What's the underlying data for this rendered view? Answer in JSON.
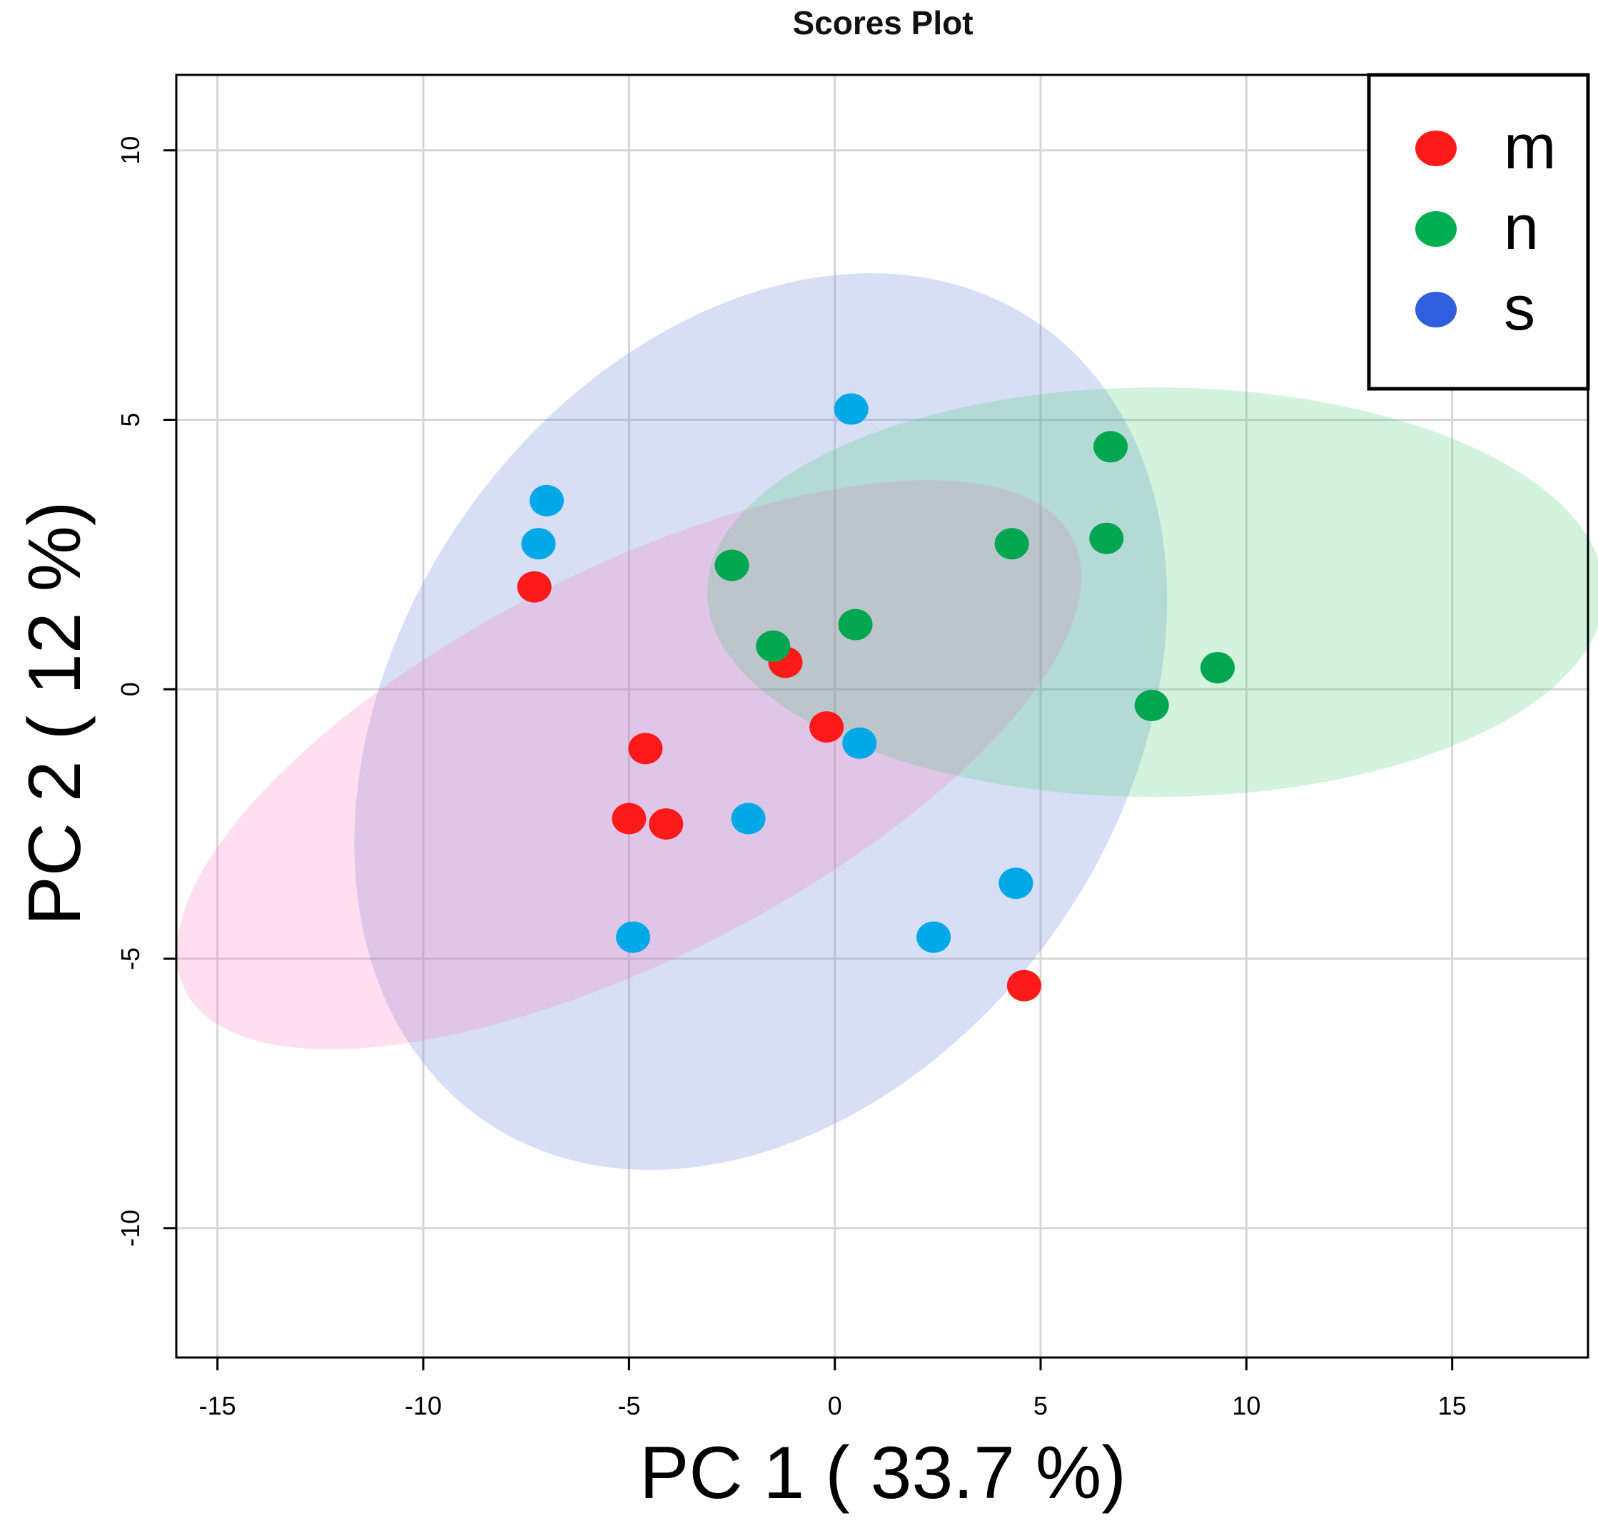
{
  "chart_data": {
    "type": "scatter",
    "title": "Scores Plot",
    "xlabel": "PC 1 ( 33.7 %)",
    "ylabel": "PC 2 ( 12 %)",
    "xlim": [
      -16,
      18.3
    ],
    "ylim": [
      -12.4,
      11.4
    ],
    "xticks": [
      -15,
      -10,
      -5,
      0,
      5,
      10,
      15
    ],
    "yticks": [
      -10,
      -5,
      0,
      5,
      10
    ],
    "grid": true,
    "legend": "top-right",
    "series": [
      {
        "name": "m",
        "color": "#ff1a1a",
        "legend_color": "#ff1a1a",
        "points": [
          {
            "x": -7.3,
            "y": 1.9
          },
          {
            "x": -1.2,
            "y": 0.5
          },
          {
            "x": -0.2,
            "y": -0.7
          },
          {
            "x": -4.6,
            "y": -1.1
          },
          {
            "x": -5.0,
            "y": -2.4
          },
          {
            "x": -4.1,
            "y": -2.5
          },
          {
            "x": 4.6,
            "y": -5.5
          }
        ],
        "ellipse": {
          "cx": -5.0,
          "cy": -1.4,
          "rx": 12.1,
          "ry": 3.6,
          "angle_deg": -27,
          "fill": "rgba(255,105,180,0.22)"
        }
      },
      {
        "name": "n",
        "color": "#00a650",
        "legend_color": "#00b050",
        "points": [
          {
            "x": -2.5,
            "y": 2.3
          },
          {
            "x": -1.5,
            "y": 0.8
          },
          {
            "x": 0.5,
            "y": 1.2
          },
          {
            "x": 4.3,
            "y": 2.7
          },
          {
            "x": 6.6,
            "y": 2.8
          },
          {
            "x": 6.7,
            "y": 4.5
          },
          {
            "x": 9.3,
            "y": 0.4
          },
          {
            "x": 7.7,
            "y": -0.3
          }
        ],
        "ellipse": {
          "cx": 7.8,
          "cy": 1.8,
          "rx": 10.9,
          "ry": 3.8,
          "angle_deg": 0,
          "fill": "rgba(60,200,100,0.22)"
        }
      },
      {
        "name": "s",
        "color": "#00a8e8",
        "legend_color": "#2f5fdd",
        "points": [
          {
            "x": -7.0,
            "y": 3.5
          },
          {
            "x": -7.2,
            "y": 2.7
          },
          {
            "x": 0.4,
            "y": 5.2
          },
          {
            "x": 0.6,
            "y": -1.0
          },
          {
            "x": -2.1,
            "y": -2.4
          },
          {
            "x": 4.4,
            "y": -3.6
          },
          {
            "x": 2.4,
            "y": -4.6
          },
          {
            "x": -4.9,
            "y": -4.6
          }
        ],
        "ellipse": {
          "cx": -1.8,
          "cy": -0.6,
          "rx": 11.8,
          "ry": 6.7,
          "angle_deg": -55,
          "fill": "rgba(120,150,225,0.30)"
        }
      }
    ]
  }
}
